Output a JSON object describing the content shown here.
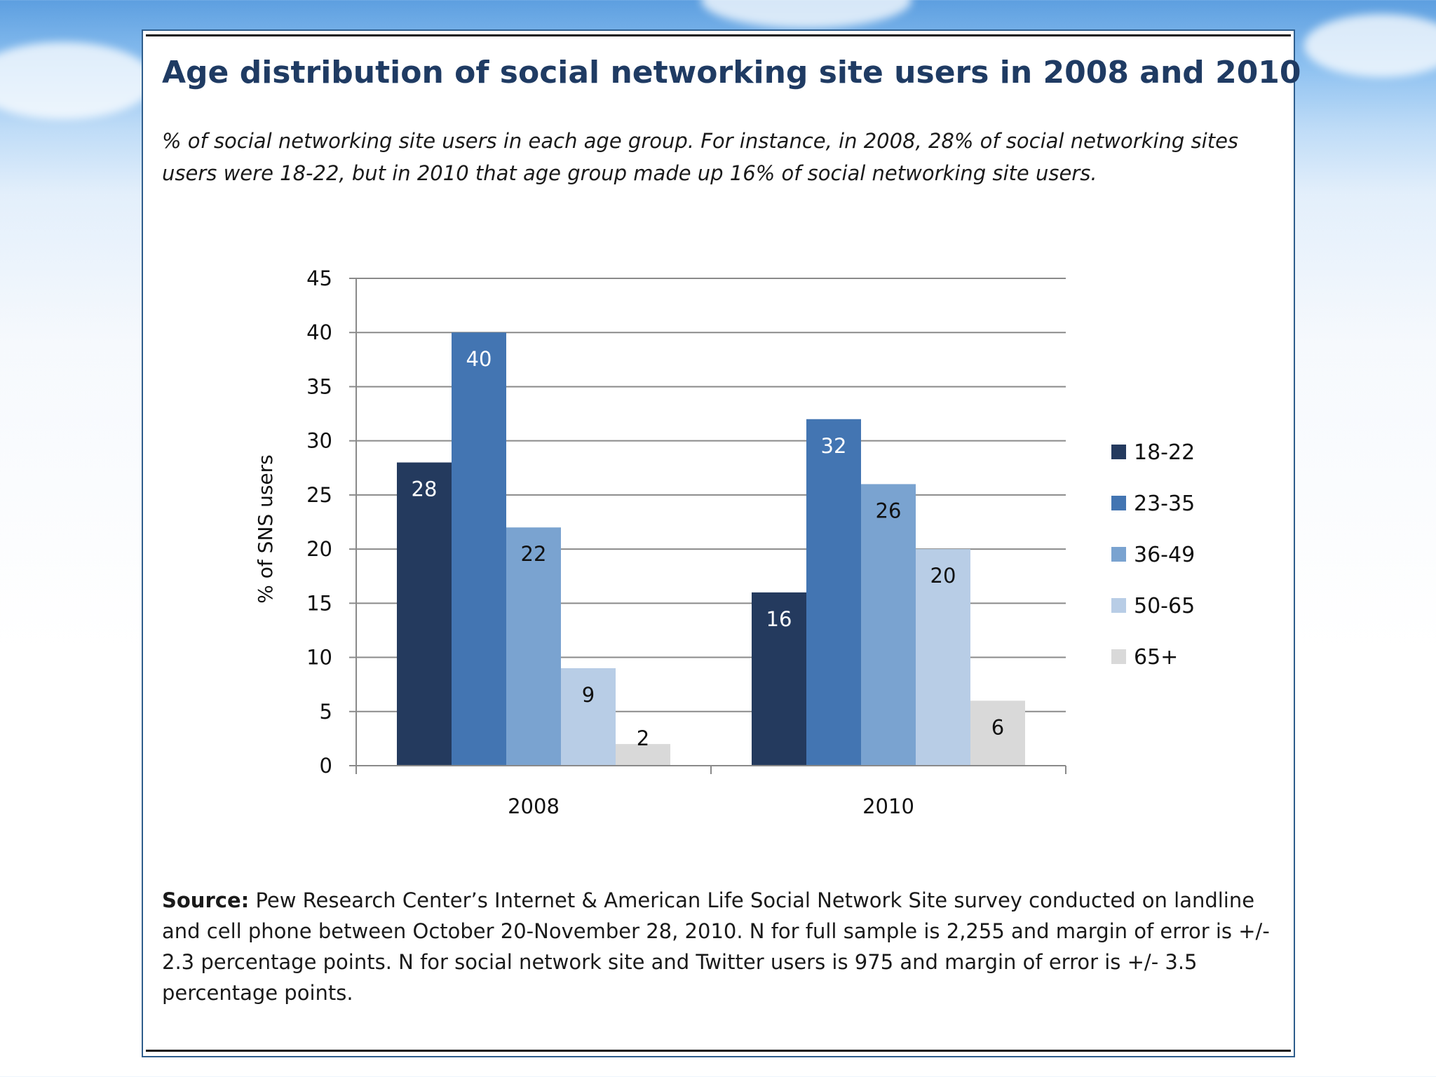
{
  "title": "Age distribution of social networking site users in 2008 and 2010",
  "subtitle": "% of social networking  site users in each age group. For instance, in 2008, 28% of social networking  sites users were  18-22, but in 2010 that age group made up 16% of social networking site users.",
  "source": {
    "label": "Source:",
    "text": "Pew Research Center’s Internet & American Life Social Network Site survey conducted on landline and  cell phone between October 20-November 28, 2010. N for full sample is 2,255 and margin  of error is +/- 2.3 percentage points.  N for social  network site  and Twitter  users is 975 and margin  of error is +/- 3.5 percentage points."
  },
  "colors": {
    "18-22": "#243a5e",
    "23-35": "#4375b2",
    "36-49": "#7aa3d0",
    "50-65": "#b8cde6",
    "65+": "#d9d9d9"
  },
  "chart_data": {
    "type": "bar",
    "title": "Age distribution of social networking site users in 2008 and 2010",
    "xlabel": "",
    "ylabel": "% of SNS users",
    "ylim": [
      0,
      45
    ],
    "yticks": [
      0,
      5,
      10,
      15,
      20,
      25,
      30,
      35,
      40,
      45
    ],
    "grid": true,
    "legend": "right",
    "categories": [
      "2008",
      "2010"
    ],
    "series": [
      {
        "name": "18-22",
        "values": [
          28,
          16
        ],
        "labels": [
          "28",
          "16"
        ]
      },
      {
        "name": "23-35",
        "values": [
          40,
          32
        ],
        "labels": [
          "40",
          "32"
        ]
      },
      {
        "name": "36-49",
        "values": [
          22,
          26
        ],
        "labels": [
          "22",
          "26"
        ]
      },
      {
        "name": "50-65",
        "values": [
          9,
          20
        ],
        "labels": [
          "9",
          "20"
        ]
      },
      {
        "name": "65+",
        "values": [
          2,
          6
        ],
        "labels": [
          "2",
          "6"
        ]
      }
    ]
  }
}
